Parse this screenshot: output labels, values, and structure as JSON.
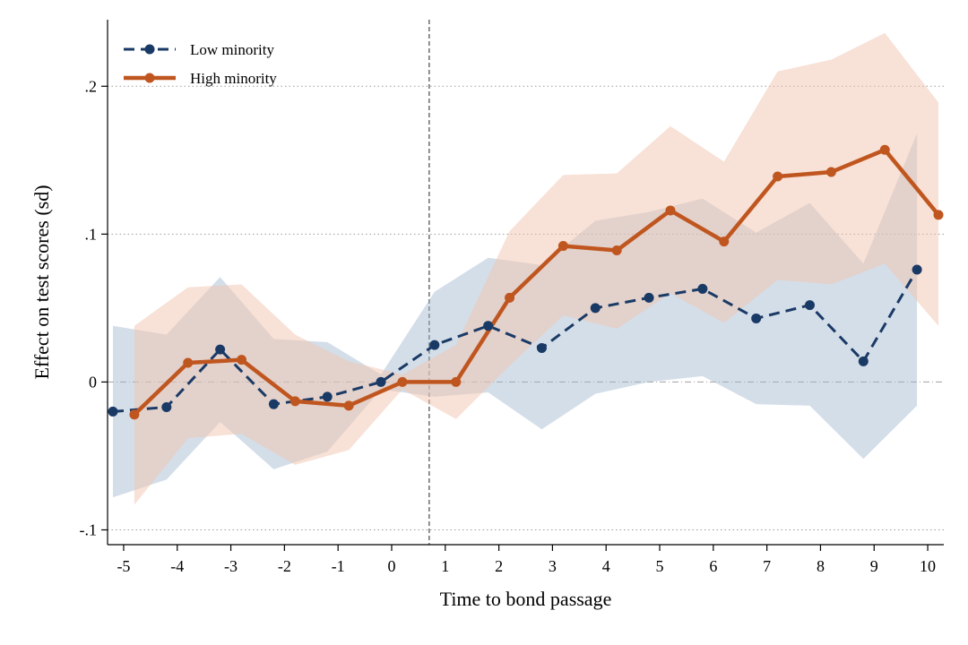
{
  "chart_data": {
    "type": "line",
    "xlabel": "Time to bond passage",
    "ylabel": "Effect on test scores (sd)",
    "xlim": [
      -5.3,
      10.3
    ],
    "ylim": [
      -0.11,
      0.245
    ],
    "x_ticks": [
      -5,
      -4,
      -3,
      -2,
      -1,
      0,
      1,
      2,
      3,
      4,
      5,
      6,
      7,
      8,
      9,
      10
    ],
    "x_tick_labels": [
      "-5",
      "-4",
      "-3",
      "-2",
      "-1",
      "0",
      "1",
      "2",
      "3",
      "4",
      "5",
      "6",
      "7",
      "8",
      "9",
      "10"
    ],
    "y_ticks": [
      -0.1,
      0,
      0.1,
      0.2
    ],
    "y_tick_labels": [
      "-.1",
      "0",
      ".1",
      ".2"
    ],
    "grid": "horizontal dotted at y ticks",
    "reference_lines": {
      "horizontal_y": 0,
      "vertical_x": 0.7
    },
    "legend": {
      "placement": "top-left",
      "entries": [
        "Low minority",
        "High minority"
      ]
    },
    "series": [
      {
        "name": "Low minority",
        "color": "#1a3a66",
        "line_style": "dashed",
        "band_color": "#9fb6cf",
        "x": [
          -5.2,
          -4.2,
          -3.2,
          -2.2,
          -1.2,
          -0.2,
          0.8,
          1.8,
          2.8,
          3.8,
          4.8,
          5.8,
          6.8,
          7.8,
          8.8,
          9.8
        ],
        "y": [
          -0.02,
          -0.017,
          0.022,
          -0.015,
          -0.01,
          0.0,
          0.025,
          0.038,
          0.023,
          0.05,
          0.057,
          0.063,
          0.043,
          0.052,
          0.014,
          0.076
        ],
        "ci_lower": [
          -0.078,
          -0.066,
          -0.027,
          -0.059,
          -0.047,
          -0.005,
          -0.01,
          -0.007,
          -0.032,
          -0.008,
          0.0,
          0.004,
          -0.015,
          -0.016,
          -0.052,
          -0.016
        ],
        "ci_upper": [
          0.038,
          0.032,
          0.071,
          0.029,
          0.027,
          0.005,
          0.061,
          0.084,
          0.079,
          0.109,
          0.115,
          0.124,
          0.101,
          0.121,
          0.08,
          0.168
        ]
      },
      {
        "name": "High minority",
        "color": "#c0561f",
        "line_style": "solid",
        "band_color": "#f2c4ae",
        "x": [
          -4.8,
          -3.8,
          -2.8,
          -1.8,
          -0.8,
          0.2,
          1.2,
          2.2,
          3.2,
          4.2,
          5.2,
          6.2,
          7.2,
          8.2,
          9.2,
          10.2
        ],
        "y": [
          -0.022,
          0.013,
          0.015,
          -0.013,
          -0.016,
          0.0,
          0.0,
          0.057,
          0.092,
          0.089,
          0.116,
          0.095,
          0.139,
          0.142,
          0.157,
          0.113
        ],
        "ci_lower": [
          -0.083,
          -0.038,
          -0.035,
          -0.056,
          -0.046,
          -0.005,
          -0.025,
          0.011,
          0.045,
          0.036,
          0.06,
          0.04,
          0.069,
          0.066,
          0.08,
          0.038
        ],
        "ci_upper": [
          0.038,
          0.064,
          0.066,
          0.032,
          0.014,
          0.005,
          0.025,
          0.102,
          0.14,
          0.141,
          0.173,
          0.149,
          0.21,
          0.218,
          0.236,
          0.189
        ]
      }
    ]
  }
}
